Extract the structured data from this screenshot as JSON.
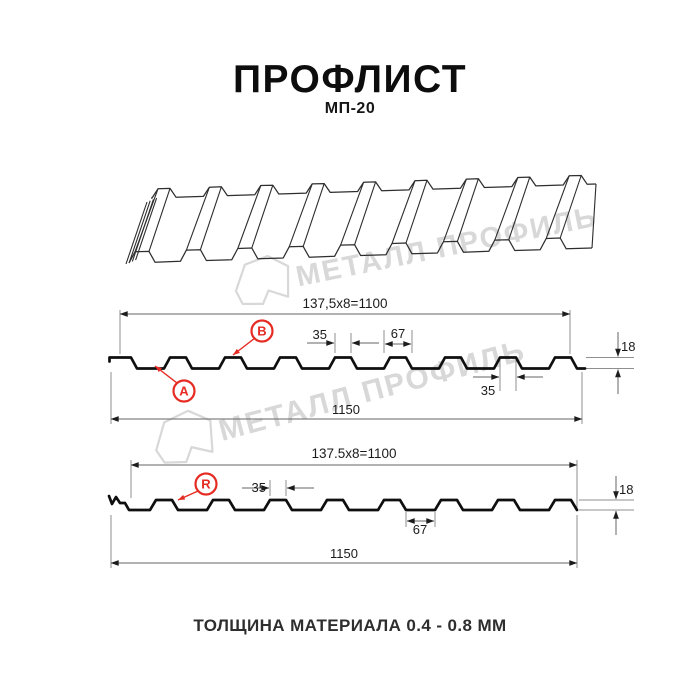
{
  "header": {
    "title": "ПРОФЛИСТ",
    "subtitle": "МП-20"
  },
  "profile_top": {
    "module_label": "137,5x8=1100",
    "overall_width": "1150",
    "rib_top_width": "35",
    "rib_base_width": "67",
    "rib_top_width_2": "35",
    "height": "18",
    "point_labels": {
      "a": "A",
      "b": "B"
    }
  },
  "profile_bottom": {
    "module_label": "137.5x8=1100",
    "overall_width": "1150",
    "rib_top_width": "35",
    "rib_base_width": "67",
    "height": "18",
    "point_labels": {
      "r": "R"
    }
  },
  "footer": {
    "note": "ТОЛЩИНА МАТЕРИАЛА 0.4 - 0.8 ММ"
  },
  "watermark": {
    "text": "МЕТАЛЛ ПРОФИЛЬ"
  },
  "colors": {
    "line": "#0f0f0f",
    "dim": "#666666",
    "red": "#e62b22",
    "watermark": "#d8d8d8"
  }
}
